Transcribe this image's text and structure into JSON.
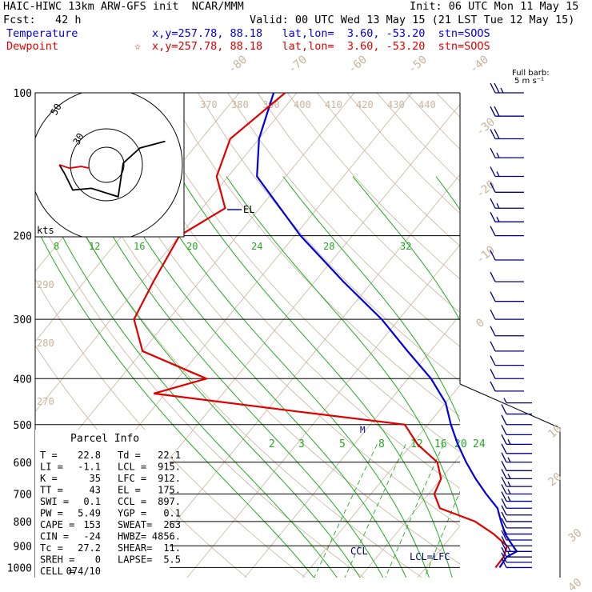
{
  "header": {
    "model": "HAIC-HIWC 13km ARW-GFS init  NCAR/MMM",
    "init": "Init: 06 UTC Mon 11 May 15",
    "fcst": "Fcst:   42 h",
    "valid": "Valid: 00 UTC Wed 13 May 15 (21 LST Tue 12 May 15)",
    "temp_label": "Temperature",
    "temp_info": "x,y=257.78, 88.18   lat,lon=  3.60, -53.20  stn=SOOS",
    "dew_label": "Dewpoint",
    "dew_info": "x,y=257.78, 88.18   lat,lon=  3.60, -53.20  stn=SOOS",
    "dew_marker": "☆",
    "barb_title": "Full barb:",
    "barb_unit": "5 m s⁻¹"
  },
  "colors": {
    "temperature": "#0000e0",
    "dewpoint": "#e00000",
    "moist_adiabat": "#22aa22",
    "mixing_ratio": "#22aa22",
    "dry_adiabat": "#c8b49a",
    "isotherm": "#c8b49a",
    "barb": "#000080"
  },
  "chart_data": {
    "type": "skew-t",
    "y_axis": "pressure (hPa)",
    "pressure_levels": [
      "100",
      "200",
      "300",
      "400",
      "500",
      "600",
      "700",
      "800",
      "900",
      "1000"
    ],
    "isotherm_labels": [
      "-80",
      "-70",
      "-60",
      "-50",
      "-40",
      "-30",
      "-20",
      "-10",
      "0",
      "10",
      "20",
      "30",
      "40"
    ],
    "theta_labels": [
      "370",
      "380",
      "390",
      "400",
      "410",
      "420",
      "430",
      "440"
    ],
    "theta_left_labels": [
      "290",
      "280",
      "270"
    ],
    "moist_adiabat_labels": [
      "8",
      "12",
      "16",
      "20",
      "24",
      "28",
      "32"
    ],
    "mixing_ratio_labels": [
      "2",
      "3",
      "5",
      "8",
      "12",
      "16",
      "20",
      "24"
    ],
    "annotations": {
      "el": "EL",
      "lcl_lfc": "LCL=LFC",
      "ccl": "CCL",
      "m": "M"
    },
    "series": [
      {
        "name": "Temperature",
        "points": [
          [
            100,
            -84
          ],
          [
            125,
            -80
          ],
          [
            150,
            -75
          ],
          [
            200,
            -59
          ],
          [
            250,
            -45
          ],
          [
            300,
            -33
          ],
          [
            350,
            -24
          ],
          [
            400,
            -16
          ],
          [
            450,
            -10
          ],
          [
            500,
            -6
          ],
          [
            550,
            -2
          ],
          [
            600,
            2
          ],
          [
            650,
            6
          ],
          [
            700,
            10
          ],
          [
            750,
            14
          ],
          [
            800,
            16.5
          ],
          [
            850,
            19
          ],
          [
            900,
            22
          ],
          [
            925,
            23.5
          ],
          [
            950,
            22.5
          ],
          [
            1000,
            22.8
          ]
        ]
      },
      {
        "name": "Dewpoint",
        "points": [
          [
            100,
            -82
          ],
          [
            125,
            -85
          ],
          [
            150,
            -82
          ],
          [
            175,
            -76
          ],
          [
            200,
            -80
          ],
          [
            250,
            -78
          ],
          [
            300,
            -76
          ],
          [
            350,
            -70
          ],
          [
            400,
            -55
          ],
          [
            430,
            -62
          ],
          [
            470,
            -34
          ],
          [
            500,
            -14
          ],
          [
            550,
            -9
          ],
          [
            600,
            -3
          ],
          [
            650,
            0
          ],
          [
            700,
            1
          ],
          [
            750,
            4
          ],
          [
            800,
            12
          ],
          [
            850,
            17
          ],
          [
            900,
            21
          ],
          [
            950,
            22
          ],
          [
            1000,
            22.1
          ]
        ]
      }
    ],
    "hodograph": {
      "ring_labels": [
        "50",
        "30"
      ],
      "unit": "kts",
      "path": [
        [
          35,
          14
        ],
        [
          20,
          10
        ],
        [
          10,
          1
        ],
        [
          7,
          -19
        ],
        [
          -9,
          -14
        ],
        [
          -20,
          -15
        ],
        [
          -25,
          -5
        ],
        [
          -28,
          0
        ]
      ],
      "red_path": [
        [
          -28,
          0
        ],
        [
          -22,
          -2
        ],
        [
          -15,
          -1
        ],
        [
          -10,
          -2
        ]
      ]
    },
    "wind_barbs": [
      {
        "p": 100,
        "spd": 25
      },
      {
        "p": 112,
        "spd": 20
      },
      {
        "p": 125,
        "spd": 20
      },
      {
        "p": 137,
        "spd": 15
      },
      {
        "p": 150,
        "spd": 15
      },
      {
        "p": 162,
        "spd": 10
      },
      {
        "p": 175,
        "spd": 15
      },
      {
        "p": 187,
        "spd": 15
      },
      {
        "p": 200,
        "spd": 10
      },
      {
        "p": 225,
        "spd": 10
      },
      {
        "p": 250,
        "spd": 10
      },
      {
        "p": 275,
        "spd": 10
      },
      {
        "p": 300,
        "spd": 10
      },
      {
        "p": 325,
        "spd": 10
      },
      {
        "p": 350,
        "spd": 10
      },
      {
        "p": 375,
        "spd": 10
      },
      {
        "p": 400,
        "spd": 10
      },
      {
        "p": 425,
        "spd": 10
      },
      {
        "p": 450,
        "spd": 5
      },
      {
        "p": 475,
        "spd": 10
      },
      {
        "p": 500,
        "spd": 10
      },
      {
        "p": 525,
        "spd": 10
      },
      {
        "p": 550,
        "spd": 15
      },
      {
        "p": 575,
        "spd": 10
      },
      {
        "p": 600,
        "spd": 15
      },
      {
        "p": 625,
        "spd": 10
      },
      {
        "p": 650,
        "spd": 15
      },
      {
        "p": 675,
        "spd": 15
      },
      {
        "p": 700,
        "spd": 15
      },
      {
        "p": 725,
        "spd": 15
      },
      {
        "p": 750,
        "spd": 10
      },
      {
        "p": 775,
        "spd": 10
      },
      {
        "p": 800,
        "spd": 10
      },
      {
        "p": 825,
        "spd": 10
      },
      {
        "p": 850,
        "spd": 10
      },
      {
        "p": 875,
        "spd": 10
      },
      {
        "p": 900,
        "spd": 10
      },
      {
        "p": 925,
        "spd": 15
      },
      {
        "p": 950,
        "spd": 15
      },
      {
        "p": 975,
        "spd": 10
      },
      {
        "p": 1000,
        "spd": 10
      }
    ]
  },
  "parcel_info": {
    "title": "Parcel Info",
    "rows": [
      [
        "T  =",
        "22.8",
        "Td =",
        "22.1"
      ],
      [
        "LI =",
        "-1.1",
        "LCL =",
        "915."
      ],
      [
        "K  =",
        "35",
        "LFC =",
        "912."
      ],
      [
        "TT =",
        "43",
        "EL  =",
        "175."
      ],
      [
        "SWI =",
        "0.1",
        "CCL =",
        "897."
      ],
      [
        "PW =",
        "5.49",
        "YGP =",
        "0.1"
      ],
      [
        "CAPE =",
        "153",
        "SWEAT=",
        "263"
      ],
      [
        "CIN =",
        "-24",
        "HWBZ=",
        "4856."
      ],
      [
        "Tc =",
        "27.2",
        "SHEAR=",
        "11."
      ],
      [
        "SREH =",
        "0",
        "LAPSE=",
        "5.5"
      ],
      [
        "CELL =",
        "074/10",
        "",
        ""
      ]
    ]
  }
}
